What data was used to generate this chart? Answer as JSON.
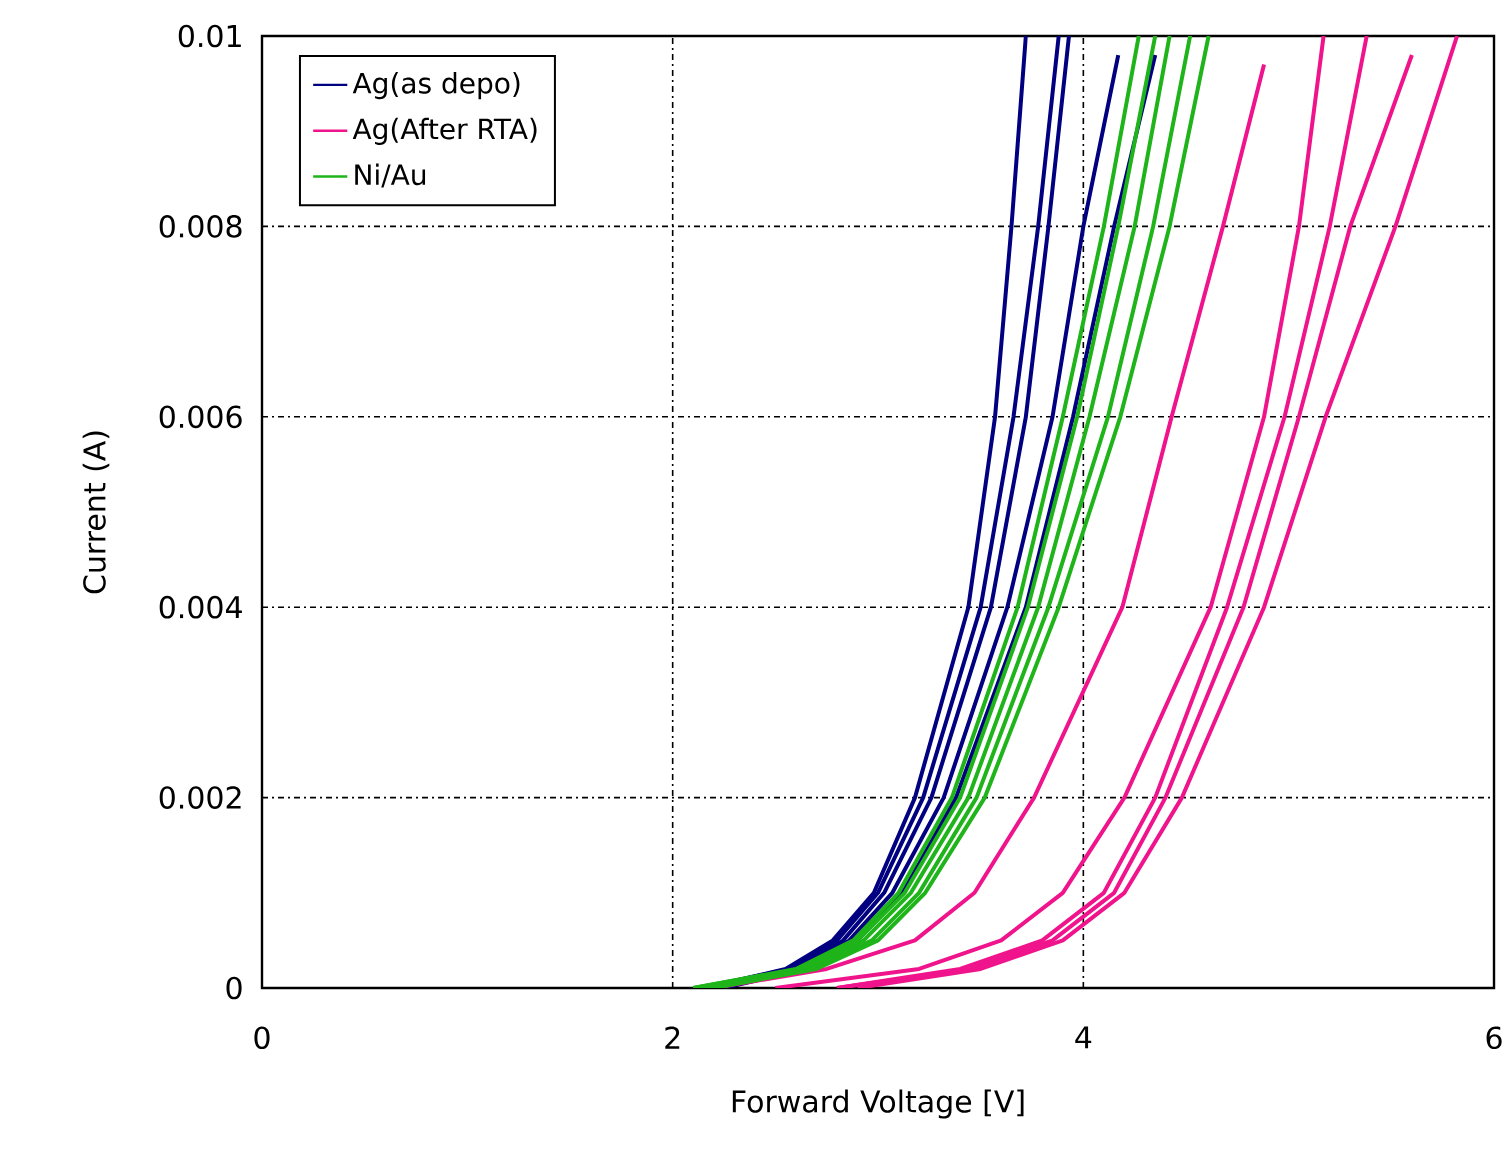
{
  "chart_data": {
    "type": "line",
    "xlabel": "Forward Voltage [V]",
    "ylabel": "Current (A)",
    "xlim": [
      0,
      6
    ],
    "ylim": [
      0,
      0.01
    ],
    "xticks": [
      0,
      2,
      4,
      6
    ],
    "yticks": [
      0,
      0.002,
      0.004,
      0.006,
      0.008,
      0.01
    ],
    "grid": true,
    "legend": "top left",
    "line_style": "solid",
    "series": [
      {
        "name": "Ag(as depo)",
        "color": "#000080",
        "x": [
          2.15,
          2.55,
          2.78,
          2.98,
          3.18,
          3.44,
          3.57,
          3.65,
          3.72
        ],
        "values": [
          0,
          0.0002,
          0.0005,
          0.001,
          0.002,
          0.004,
          0.006,
          0.008,
          0.01
        ]
      },
      {
        "color": "#000080",
        "x": [
          2.15,
          2.57,
          2.8,
          3.0,
          3.22,
          3.5,
          3.66,
          3.78,
          3.88
        ],
        "values": [
          0,
          0.0002,
          0.0005,
          0.001,
          0.002,
          0.004,
          0.006,
          0.008,
          0.01
        ]
      },
      {
        "color": "#000080",
        "x": [
          2.2,
          2.6,
          2.83,
          3.03,
          3.26,
          3.55,
          3.72,
          3.83,
          3.93
        ],
        "values": [
          0,
          0.0002,
          0.0005,
          0.001,
          0.002,
          0.004,
          0.006,
          0.008,
          0.01
        ]
      },
      {
        "color": "#000080",
        "x": [
          2.2,
          2.62,
          2.86,
          3.07,
          3.32,
          3.63,
          3.85,
          4.0,
          4.17
        ],
        "values": [
          0,
          0.0002,
          0.0005,
          0.001,
          0.002,
          0.004,
          0.006,
          0.008,
          0.0098
        ]
      },
      {
        "color": "#000080",
        "x": [
          2.25,
          2.65,
          2.9,
          3.12,
          3.38,
          3.72,
          3.95,
          4.15,
          4.35
        ],
        "values": [
          0,
          0.0002,
          0.0005,
          0.001,
          0.002,
          0.004,
          0.006,
          0.008,
          0.0098
        ]
      },
      {
        "name": "Ag(After RTA)",
        "color": "#f0148c",
        "x": [
          2.2,
          2.75,
          3.18,
          3.47,
          3.76,
          4.19,
          4.43,
          4.68,
          4.88
        ],
        "values": [
          0,
          0.0002,
          0.0005,
          0.001,
          0.002,
          0.004,
          0.006,
          0.008,
          0.0097
        ]
      },
      {
        "color": "#f0148c",
        "x": [
          2.5,
          3.2,
          3.6,
          3.9,
          4.2,
          4.62,
          4.88,
          5.05,
          5.17
        ],
        "values": [
          0,
          0.0002,
          0.0005,
          0.001,
          0.002,
          0.004,
          0.006,
          0.008,
          0.01
        ]
      },
      {
        "color": "#f0148c",
        "x": [
          2.8,
          3.4,
          3.8,
          4.1,
          4.35,
          4.7,
          4.98,
          5.2,
          5.38
        ],
        "values": [
          0,
          0.0002,
          0.0005,
          0.001,
          0.002,
          0.004,
          0.006,
          0.008,
          0.01
        ]
      },
      {
        "color": "#f0148c",
        "x": [
          2.8,
          3.45,
          3.85,
          4.15,
          4.4,
          4.78,
          5.05,
          5.3,
          5.6
        ],
        "values": [
          0,
          0.0002,
          0.0005,
          0.001,
          0.002,
          0.004,
          0.006,
          0.008,
          0.0098
        ]
      },
      {
        "color": "#f0148c",
        "x": [
          2.9,
          3.5,
          3.9,
          4.2,
          4.48,
          4.88,
          5.18,
          5.52,
          5.82
        ],
        "values": [
          0,
          0.0002,
          0.0005,
          0.001,
          0.002,
          0.004,
          0.006,
          0.008,
          0.01
        ]
      },
      {
        "name": "Ni/Au",
        "color": "#1eb41a",
        "x": [
          2.1,
          2.6,
          2.88,
          3.1,
          3.36,
          3.68,
          3.9,
          4.1,
          4.27
        ],
        "values": [
          0,
          0.0002,
          0.0005,
          0.001,
          0.002,
          0.004,
          0.006,
          0.008,
          0.01
        ]
      },
      {
        "color": "#1eb41a",
        "x": [
          2.1,
          2.62,
          2.9,
          3.13,
          3.4,
          3.73,
          3.97,
          4.17,
          4.35
        ],
        "values": [
          0,
          0.0002,
          0.0005,
          0.001,
          0.002,
          0.004,
          0.006,
          0.008,
          0.01
        ]
      },
      {
        "color": "#1eb41a",
        "x": [
          2.15,
          2.65,
          2.93,
          3.16,
          3.44,
          3.78,
          4.03,
          4.25,
          4.42
        ],
        "values": [
          0,
          0.0002,
          0.0005,
          0.001,
          0.002,
          0.004,
          0.006,
          0.008,
          0.01
        ]
      },
      {
        "color": "#1eb41a",
        "x": [
          2.15,
          2.68,
          2.97,
          3.2,
          3.48,
          3.83,
          4.12,
          4.34,
          4.52
        ],
        "values": [
          0,
          0.0002,
          0.0005,
          0.001,
          0.002,
          0.004,
          0.006,
          0.008,
          0.01
        ]
      },
      {
        "color": "#1eb41a",
        "x": [
          2.2,
          2.7,
          3.0,
          3.23,
          3.52,
          3.88,
          4.18,
          4.42,
          4.61
        ],
        "values": [
          0,
          0.0002,
          0.0005,
          0.001,
          0.002,
          0.004,
          0.006,
          0.008,
          0.01
        ]
      }
    ]
  }
}
